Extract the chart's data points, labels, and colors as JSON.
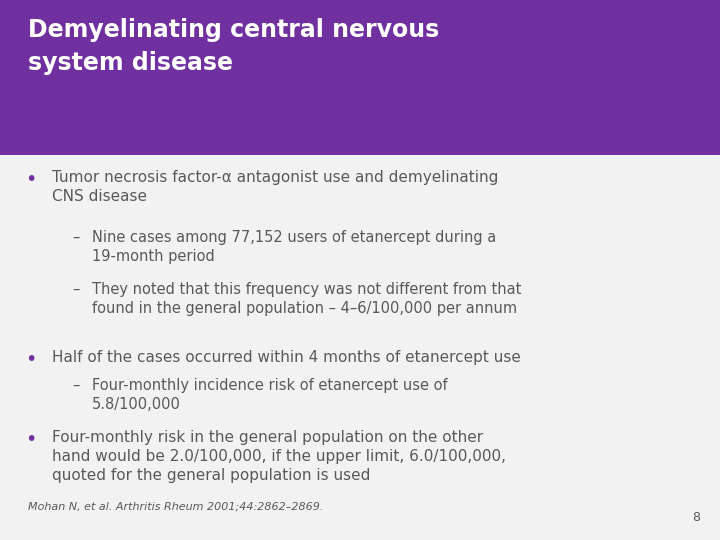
{
  "title_line1": "Demyelinating central nervous",
  "title_line2": "system disease",
  "title_bg_color": "#7030A0",
  "title_text_color": "#FFFFFF",
  "slide_bg_color": "#F2F2F2",
  "body_text_color": "#595959",
  "bullet_color": "#7030A0",
  "bullet1_main": "Tumor necrosis factor-α antagonist use and demyelinating\nCNS disease",
  "bullet1_sub1": "Nine cases among 77,152 users of etanercept during a\n19-month period",
  "bullet1_sub2": "They noted that this frequency was not different from that\nfound in the general population – 4–6/100,000 per annum",
  "bullet2_main": "Half of the cases occurred within 4 months of etanercept use",
  "bullet2_sub1": "Four-monthly incidence risk of etanercept use of\n5.8/100,000",
  "bullet3_main": "Four-monthly risk in the general population on the other\nhand would be 2.0/100,000, if the upper limit, 6.0/100,000,\nquoted for the general population is used",
  "footnote": "Mohan N, et al. Arthritis Rheum 2001;44:2862–2869.",
  "page_number": "8",
  "title_fontsize": 17,
  "body_fontsize": 11,
  "sub_fontsize": 10.5,
  "footnote_fontsize": 8
}
